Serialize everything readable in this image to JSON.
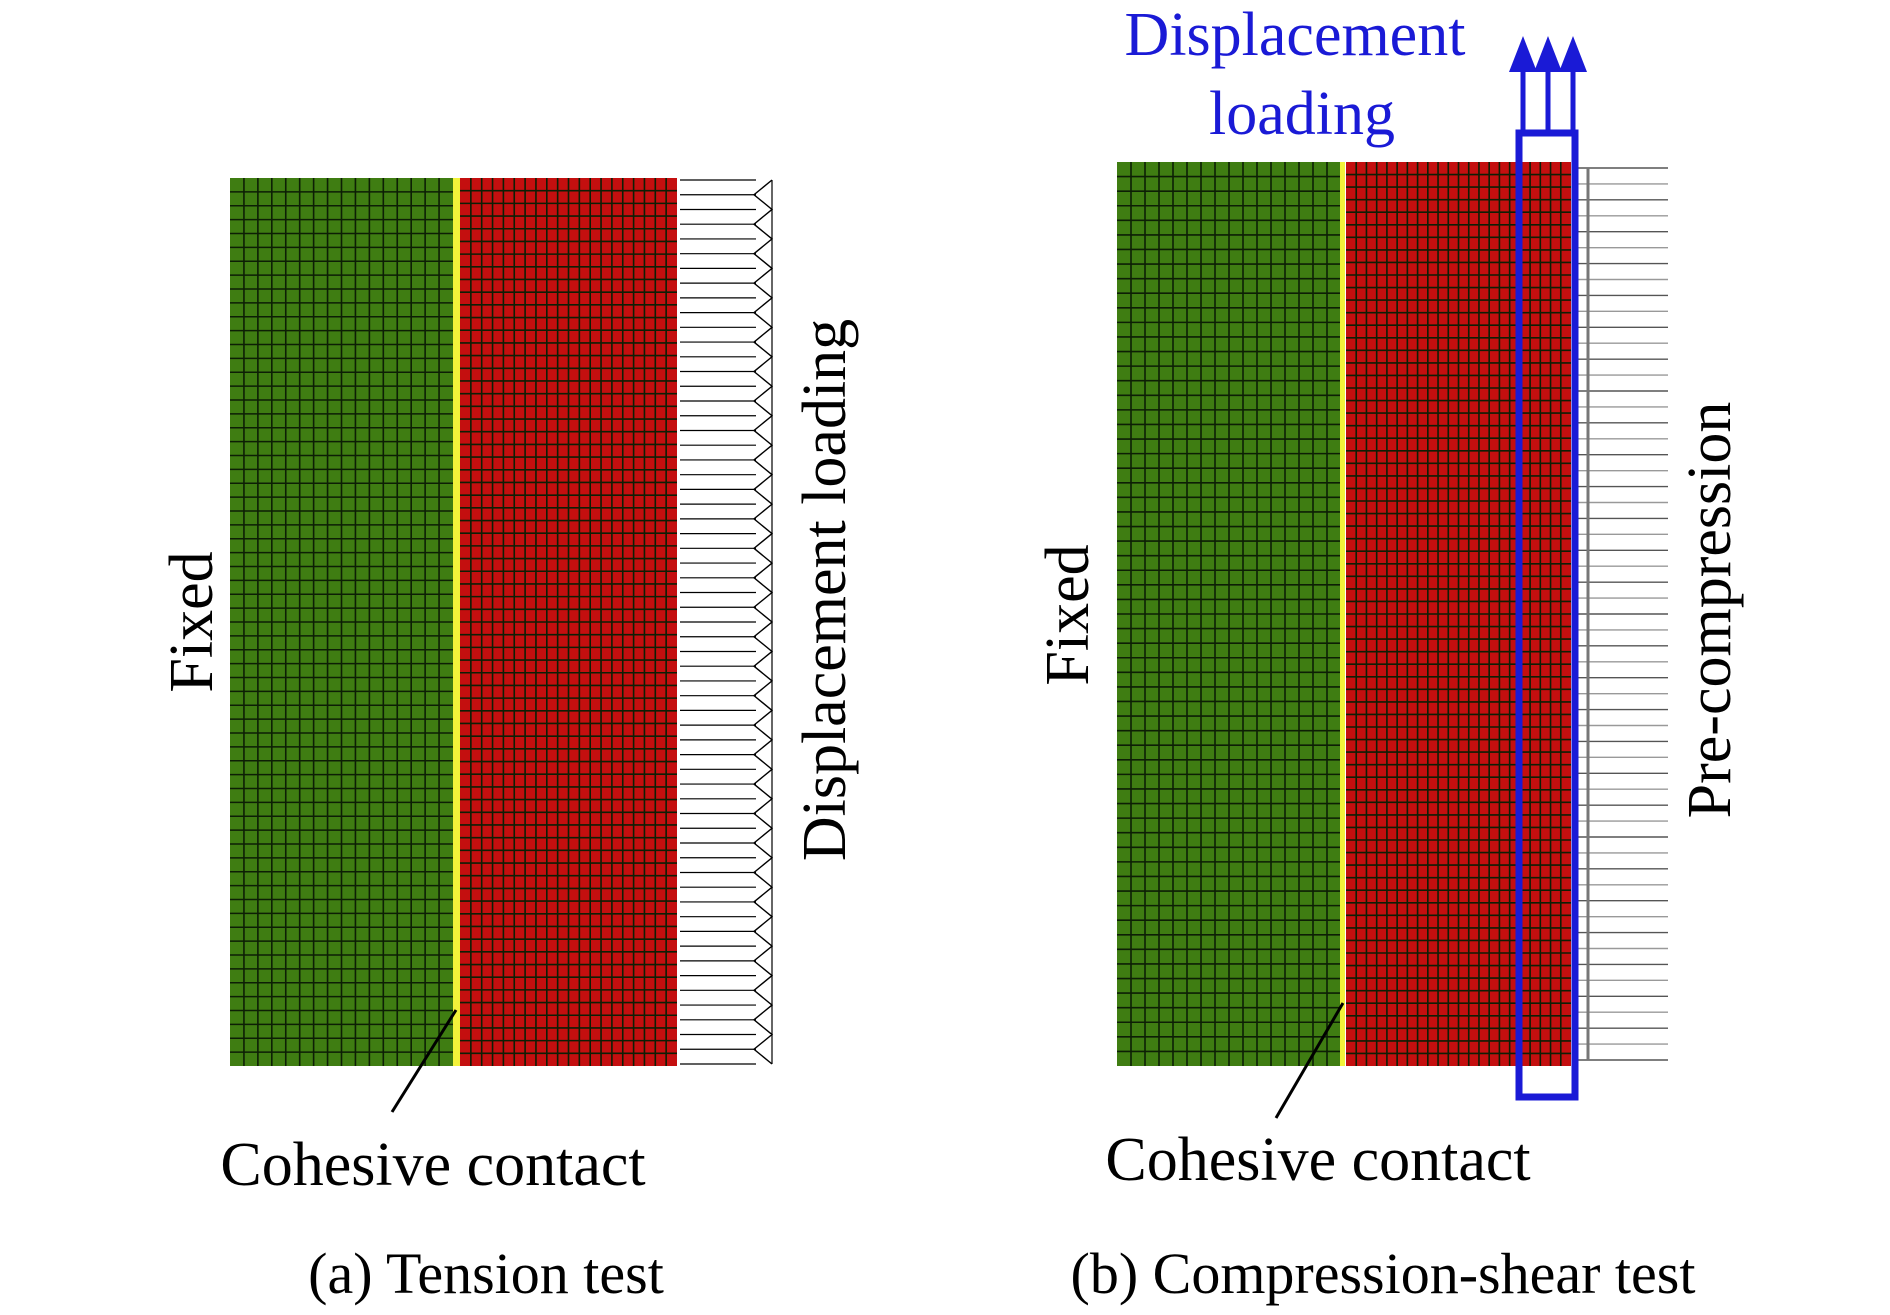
{
  "panel_a": {
    "fixed_label": "Fixed",
    "loading_label": "Displacement loading",
    "contact_label": "Cohesive contact",
    "caption": "(a) Tension test"
  },
  "panel_b": {
    "fixed_label": "Fixed",
    "loading_label_line1": "Displacement",
    "loading_label_line2": "loading",
    "precompression_label": "Pre-compression",
    "contact_label": "Cohesive contact",
    "caption": "(b) Compression-shear test"
  },
  "colors": {
    "fixed_block": "#3f7d12",
    "loaded_block": "#c40f0f",
    "cohesive_interface": "#f2f23a",
    "loading_marker": "#1a1ad6",
    "mesh_line": "#0d1f05"
  }
}
